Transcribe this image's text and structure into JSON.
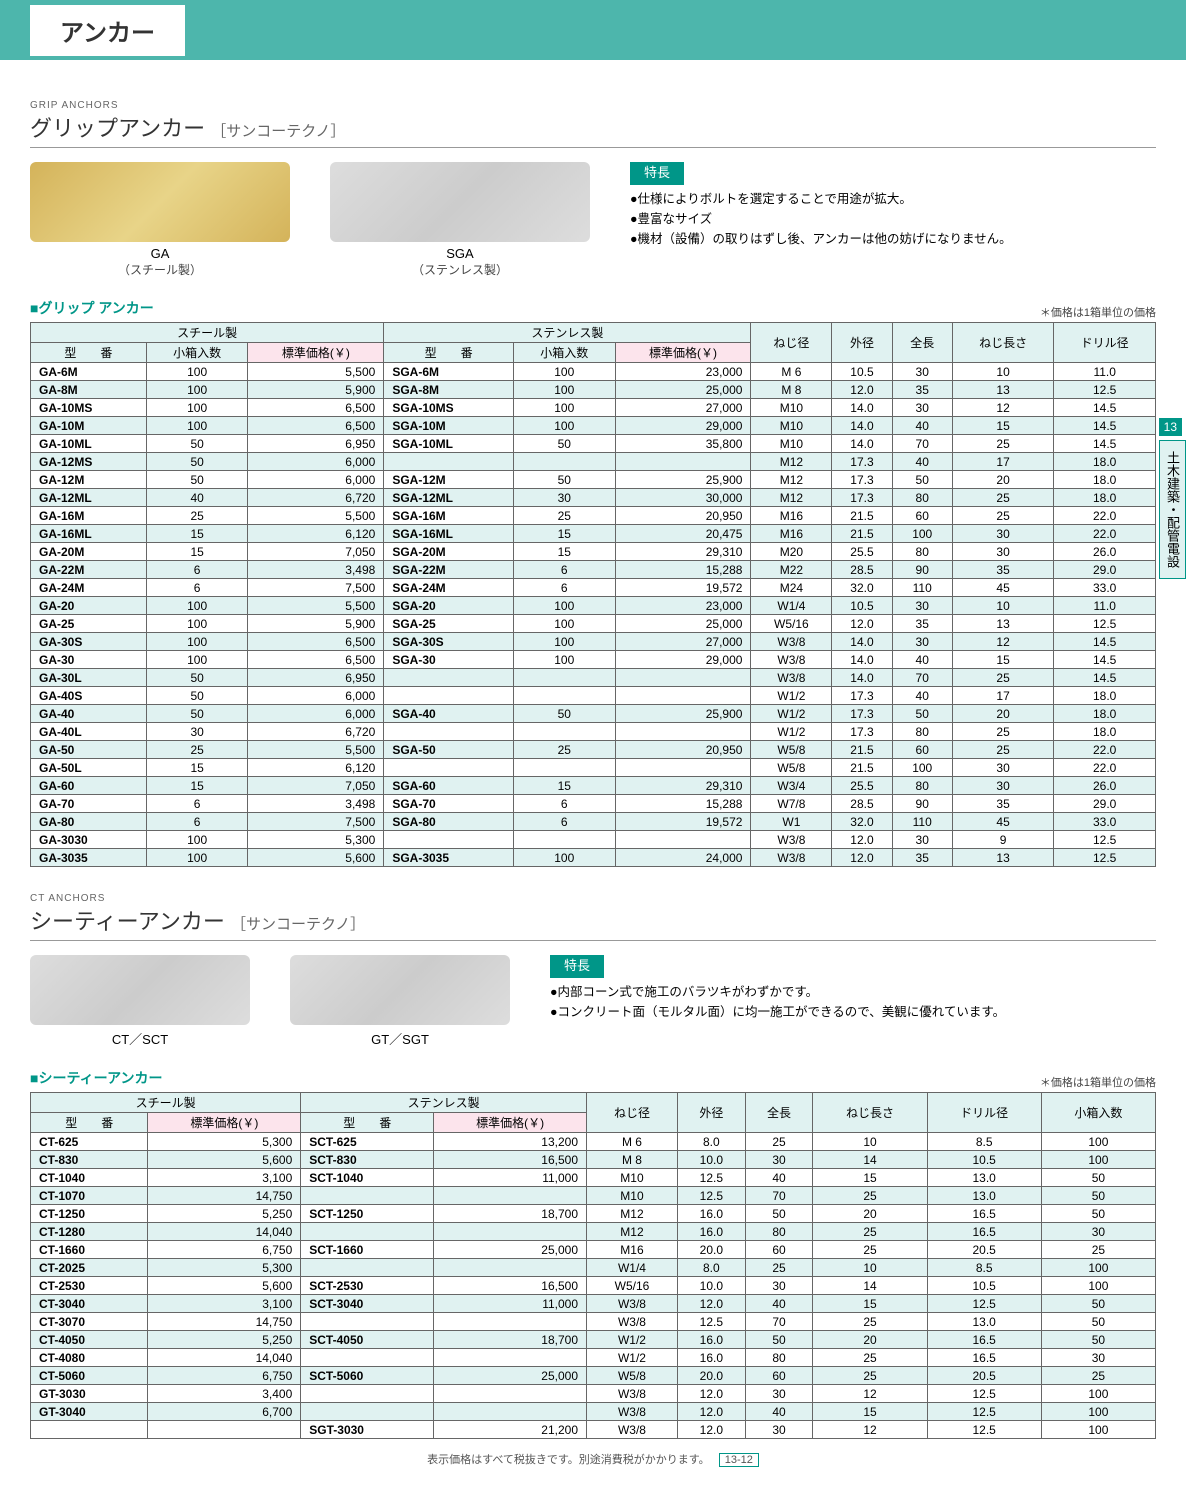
{
  "page_header": "アンカー",
  "side_tab_num": "13",
  "side_tab_text": "土木建築・配管電設",
  "footer": "表示価格はすべて税抜きです。別途消費税がかかります。",
  "page_num": "13-12",
  "grip": {
    "en": "GRIP ANCHORS",
    "title": "グリップアンカー",
    "sub": "［サンコーテクノ］",
    "img1_cap": "GA",
    "img1_cap2": "（スチール製）",
    "img2_cap": "SGA",
    "img2_cap2": "（ステンレス製）",
    "feat_h": "特長",
    "feat": [
      "●仕様によりボルトを選定することで用途が拡大。",
      "●豊富なサイズ",
      "●機材（設備）の取りはずし後、アンカーは他の妨げになりません。"
    ],
    "tbl_title": "グリップ アンカー",
    "price_note": "＊価格は1箱単位の価格",
    "cols_top": [
      "スチール製",
      "ステンレス製",
      "ねじ径",
      "外径",
      "全長",
      "ねじ長さ",
      "ドリル径"
    ],
    "cols_sub": [
      "型　　番",
      "小箱入数",
      "標準価格(￥)",
      "型　　番",
      "小箱入数",
      "標準価格(￥)"
    ],
    "rows": [
      [
        "GA-6M",
        "100",
        "5,500",
        "SGA-6M",
        "100",
        "23,000",
        "M 6",
        "10.5",
        "30",
        "10",
        "11.0"
      ],
      [
        "GA-8M",
        "100",
        "5,900",
        "SGA-8M",
        "100",
        "25,000",
        "M 8",
        "12.0",
        "35",
        "13",
        "12.5"
      ],
      [
        "GA-10MS",
        "100",
        "6,500",
        "SGA-10MS",
        "100",
        "27,000",
        "M10",
        "14.0",
        "30",
        "12",
        "14.5"
      ],
      [
        "GA-10M",
        "100",
        "6,500",
        "SGA-10M",
        "100",
        "29,000",
        "M10",
        "14.0",
        "40",
        "15",
        "14.5"
      ],
      [
        "GA-10ML",
        "50",
        "6,950",
        "SGA-10ML",
        "50",
        "35,800",
        "M10",
        "14.0",
        "70",
        "25",
        "14.5"
      ],
      [
        "GA-12MS",
        "50",
        "6,000",
        "",
        "",
        "",
        "M12",
        "17.3",
        "40",
        "17",
        "18.0"
      ],
      [
        "GA-12M",
        "50",
        "6,000",
        "SGA-12M",
        "50",
        "25,900",
        "M12",
        "17.3",
        "50",
        "20",
        "18.0"
      ],
      [
        "GA-12ML",
        "40",
        "6,720",
        "SGA-12ML",
        "30",
        "30,000",
        "M12",
        "17.3",
        "80",
        "25",
        "18.0"
      ],
      [
        "GA-16M",
        "25",
        "5,500",
        "SGA-16M",
        "25",
        "20,950",
        "M16",
        "21.5",
        "60",
        "25",
        "22.0"
      ],
      [
        "GA-16ML",
        "15",
        "6,120",
        "SGA-16ML",
        "15",
        "20,475",
        "M16",
        "21.5",
        "100",
        "30",
        "22.0"
      ],
      [
        "GA-20M",
        "15",
        "7,050",
        "SGA-20M",
        "15",
        "29,310",
        "M20",
        "25.5",
        "80",
        "30",
        "26.0"
      ],
      [
        "GA-22M",
        "6",
        "3,498",
        "SGA-22M",
        "6",
        "15,288",
        "M22",
        "28.5",
        "90",
        "35",
        "29.0"
      ],
      [
        "GA-24M",
        "6",
        "7,500",
        "SGA-24M",
        "6",
        "19,572",
        "M24",
        "32.0",
        "110",
        "45",
        "33.0"
      ],
      [
        "GA-20",
        "100",
        "5,500",
        "SGA-20",
        "100",
        "23,000",
        "W1/4",
        "10.5",
        "30",
        "10",
        "11.0"
      ],
      [
        "GA-25",
        "100",
        "5,900",
        "SGA-25",
        "100",
        "25,000",
        "W5/16",
        "12.0",
        "35",
        "13",
        "12.5"
      ],
      [
        "GA-30S",
        "100",
        "6,500",
        "SGA-30S",
        "100",
        "27,000",
        "W3/8",
        "14.0",
        "30",
        "12",
        "14.5"
      ],
      [
        "GA-30",
        "100",
        "6,500",
        "SGA-30",
        "100",
        "29,000",
        "W3/8",
        "14.0",
        "40",
        "15",
        "14.5"
      ],
      [
        "GA-30L",
        "50",
        "6,950",
        "",
        "",
        "",
        "W3/8",
        "14.0",
        "70",
        "25",
        "14.5"
      ],
      [
        "GA-40S",
        "50",
        "6,000",
        "",
        "",
        "",
        "W1/2",
        "17.3",
        "40",
        "17",
        "18.0"
      ],
      [
        "GA-40",
        "50",
        "6,000",
        "SGA-40",
        "50",
        "25,900",
        "W1/2",
        "17.3",
        "50",
        "20",
        "18.0"
      ],
      [
        "GA-40L",
        "30",
        "6,720",
        "",
        "",
        "",
        "W1/2",
        "17.3",
        "80",
        "25",
        "18.0"
      ],
      [
        "GA-50",
        "25",
        "5,500",
        "SGA-50",
        "25",
        "20,950",
        "W5/8",
        "21.5",
        "60",
        "25",
        "22.0"
      ],
      [
        "GA-50L",
        "15",
        "6,120",
        "",
        "",
        "",
        "W5/8",
        "21.5",
        "100",
        "30",
        "22.0"
      ],
      [
        "GA-60",
        "15",
        "7,050",
        "SGA-60",
        "15",
        "29,310",
        "W3/4",
        "25.5",
        "80",
        "30",
        "26.0"
      ],
      [
        "GA-70",
        "6",
        "3,498",
        "SGA-70",
        "6",
        "15,288",
        "W7/8",
        "28.5",
        "90",
        "35",
        "29.0"
      ],
      [
        "GA-80",
        "6",
        "7,500",
        "SGA-80",
        "6",
        "19,572",
        "W1",
        "32.0",
        "110",
        "45",
        "33.0"
      ],
      [
        "GA-3030",
        "100",
        "5,300",
        "",
        "",
        "",
        "W3/8",
        "12.0",
        "30",
        "9",
        "12.5"
      ],
      [
        "GA-3035",
        "100",
        "5,600",
        "SGA-3035",
        "100",
        "24,000",
        "W3/8",
        "12.0",
        "35",
        "13",
        "12.5"
      ]
    ]
  },
  "ct": {
    "en": "CT ANCHORS",
    "title": "シーティーアンカー",
    "sub": "［サンコーテクノ］",
    "img1_cap": "CT／SCT",
    "img2_cap": "GT／SGT",
    "feat_h": "特長",
    "feat": [
      "●内部コーン式で施工のバラツキがわずかです。",
      "●コンクリート面（モルタル面）に均一施工ができるので、美観に優れています。"
    ],
    "tbl_title": "シーティーアンカー",
    "price_note": "＊価格は1箱単位の価格",
    "cols_top": [
      "スチール製",
      "ステンレス製",
      "ねじ径",
      "外径",
      "全長",
      "ねじ長さ",
      "ドリル径",
      "小箱入数"
    ],
    "cols_sub": [
      "型　　番",
      "標準価格(￥)",
      "型　　番",
      "標準価格(￥)"
    ],
    "rows": [
      [
        "CT-625",
        "5,300",
        "SCT-625",
        "13,200",
        "M 6",
        "8.0",
        "25",
        "10",
        "8.5",
        "100"
      ],
      [
        "CT-830",
        "5,600",
        "SCT-830",
        "16,500",
        "M 8",
        "10.0",
        "30",
        "14",
        "10.5",
        "100"
      ],
      [
        "CT-1040",
        "3,100",
        "SCT-1040",
        "11,000",
        "M10",
        "12.5",
        "40",
        "15",
        "13.0",
        "50"
      ],
      [
        "CT-1070",
        "14,750",
        "",
        "",
        "M10",
        "12.5",
        "70",
        "25",
        "13.0",
        "50"
      ],
      [
        "CT-1250",
        "5,250",
        "SCT-1250",
        "18,700",
        "M12",
        "16.0",
        "50",
        "20",
        "16.5",
        "50"
      ],
      [
        "CT-1280",
        "14,040",
        "",
        "",
        "M12",
        "16.0",
        "80",
        "25",
        "16.5",
        "30"
      ],
      [
        "CT-1660",
        "6,750",
        "SCT-1660",
        "25,000",
        "M16",
        "20.0",
        "60",
        "25",
        "20.5",
        "25"
      ],
      [
        "CT-2025",
        "5,300",
        "",
        "",
        "W1/4",
        "8.0",
        "25",
        "10",
        "8.5",
        "100"
      ],
      [
        "CT-2530",
        "5,600",
        "SCT-2530",
        "16,500",
        "W5/16",
        "10.0",
        "30",
        "14",
        "10.5",
        "100"
      ],
      [
        "CT-3040",
        "3,100",
        "SCT-3040",
        "11,000",
        "W3/8",
        "12.0",
        "40",
        "15",
        "12.5",
        "50"
      ],
      [
        "CT-3070",
        "14,750",
        "",
        "",
        "W3/8",
        "12.5",
        "70",
        "25",
        "13.0",
        "50"
      ],
      [
        "CT-4050",
        "5,250",
        "SCT-4050",
        "18,700",
        "W1/2",
        "16.0",
        "50",
        "20",
        "16.5",
        "50"
      ],
      [
        "CT-4080",
        "14,040",
        "",
        "",
        "W1/2",
        "16.0",
        "80",
        "25",
        "16.5",
        "30"
      ],
      [
        "CT-5060",
        "6,750",
        "SCT-5060",
        "25,000",
        "W5/8",
        "20.0",
        "60",
        "25",
        "20.5",
        "25"
      ],
      [
        "GT-3030",
        "3,400",
        "",
        "",
        "W3/8",
        "12.0",
        "30",
        "12",
        "12.5",
        "100"
      ],
      [
        "GT-3040",
        "6,700",
        "",
        "",
        "W3/8",
        "12.0",
        "40",
        "15",
        "12.5",
        "100"
      ],
      [
        "",
        "",
        "SGT-3030",
        "21,200",
        "W3/8",
        "12.0",
        "30",
        "12",
        "12.5",
        "100"
      ]
    ]
  }
}
